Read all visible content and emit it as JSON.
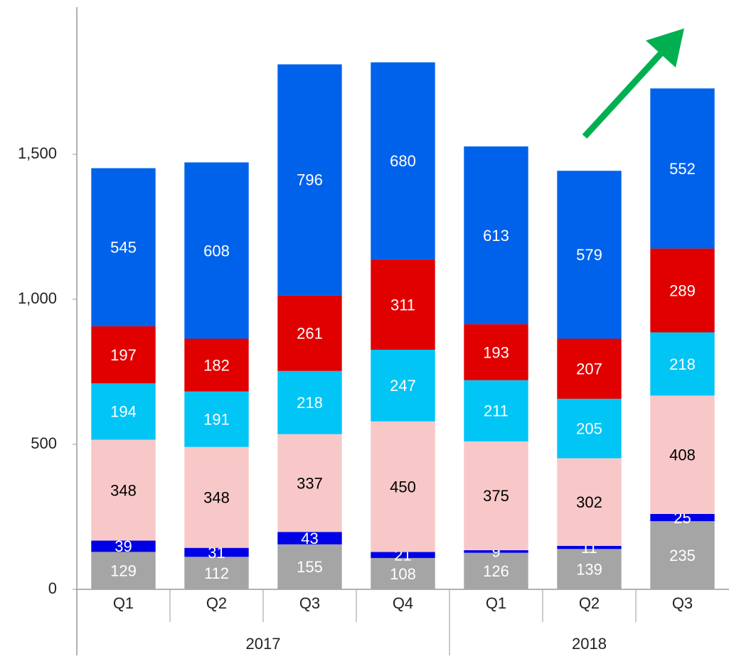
{
  "chart_data": {
    "type": "stacked_bar",
    "categories": [
      "Q1",
      "Q2",
      "Q3",
      "Q4",
      "Q1",
      "Q2",
      "Q3"
    ],
    "groups": [
      {
        "label": "2017",
        "count": 4
      },
      {
        "label": "2018",
        "count": 3
      }
    ],
    "series": [
      {
        "color": "#a5a5a5",
        "label_color": "#ffffff",
        "values": [
          129,
          112,
          155,
          108,
          126,
          139,
          235
        ]
      },
      {
        "color": "#0000e6",
        "label_color": "#ffffff",
        "values": [
          39,
          31,
          43,
          21,
          9,
          11,
          25
        ]
      },
      {
        "color": "#f8c8c8",
        "label_color": "#000000",
        "values": [
          348,
          348,
          337,
          450,
          375,
          302,
          408
        ]
      },
      {
        "color": "#00c5f5",
        "label_color": "#ffffff",
        "values": [
          194,
          191,
          218,
          247,
          211,
          205,
          218
        ]
      },
      {
        "color": "#e00000",
        "label_color": "#ffffff",
        "values": [
          197,
          182,
          261,
          311,
          193,
          207,
          289
        ]
      },
      {
        "color": "#0062eb",
        "label_color": "#ffffff",
        "values": [
          545,
          608,
          796,
          680,
          613,
          579,
          552
        ]
      }
    ],
    "ylim": [
      0,
      2000
    ],
    "yticks": [
      0,
      500,
      {
        "value": 1000,
        "label": "1,000"
      },
      {
        "value": 1500,
        "label": "1,500"
      }
    ]
  }
}
